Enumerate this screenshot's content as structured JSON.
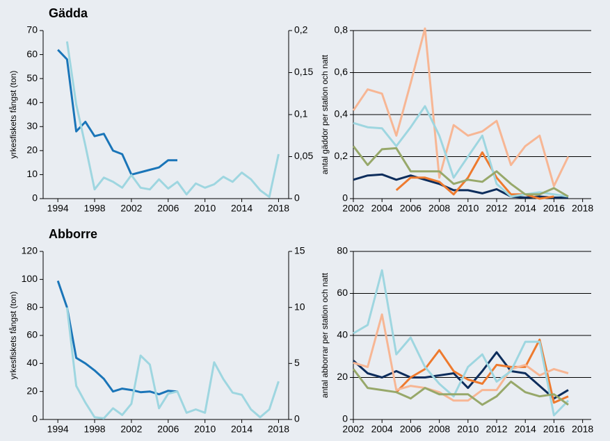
{
  "chart_data": [
    {
      "type": "line",
      "title": "Gädda",
      "ylabel": "yrkesfiskets fångst (ton)",
      "x": [
        1994,
        1995,
        1996,
        1997,
        1998,
        1999,
        2000,
        2001,
        2002,
        2003,
        2004,
        2005,
        2006,
        2007,
        2008,
        2009,
        2010,
        2011,
        2012,
        2013,
        2014,
        2015,
        2016,
        2017,
        2018
      ],
      "series": [
        {
          "color": "#1a75b8",
          "values": [
            62,
            58,
            28,
            32,
            26,
            27,
            20,
            18.5,
            10,
            11,
            12,
            13,
            16,
            16,
            null,
            null,
            null,
            null,
            null,
            null,
            null,
            null,
            null,
            null,
            null
          ]
        },
        {
          "color": "#9ed6e0",
          "axis": "y2",
          "values": [
            null,
            0.187,
            0.112,
            0.063,
            0.011,
            0.025,
            0.02,
            0.013,
            0.028,
            0.013,
            0.011,
            0.023,
            0.012,
            0.02,
            0.005,
            0.018,
            0.013,
            0.017,
            0.026,
            0.02,
            0.031,
            0.023,
            0.01,
            0.002,
            0.053
          ]
        }
      ],
      "xlim": [
        1992.4,
        2019.1
      ],
      "xticks": [
        1994,
        1998,
        2002,
        2006,
        2010,
        2014,
        2018
      ],
      "ylim": [
        0,
        70
      ],
      "yticks": [
        0,
        10,
        20,
        30,
        40,
        50,
        60,
        70
      ],
      "y2lim": [
        0,
        0.2
      ],
      "y2ticks": [
        0,
        {
          "value": 0.05,
          "label": "0,05"
        },
        {
          "value": 0.1,
          "label": "0,1"
        },
        {
          "value": 0.15,
          "label": "0,15"
        },
        {
          "value": 0.2,
          "label": "0,2"
        }
      ],
      "grid": false
    },
    {
      "type": "line",
      "ylabel": "antal gäddor per station och natt",
      "x": [
        2002,
        2003,
        2004,
        2005,
        2006,
        2007,
        2008,
        2009,
        2010,
        2011,
        2012,
        2013,
        2014,
        2015,
        2016,
        2017
      ],
      "series": [
        {
          "color": "#0d2d5c",
          "values": [
            0.09,
            0.11,
            0.115,
            0.09,
            0.11,
            0.09,
            0.07,
            0.04,
            0.04,
            0.025,
            0.045,
            0.01,
            0.005,
            0.01,
            0.005,
            0.005
          ]
        },
        {
          "color": "#ee7a2e",
          "values": [
            null,
            null,
            null,
            0.04,
            0.1,
            0.1,
            0.08,
            0.02,
            0.1,
            0.22,
            0.1,
            0.02,
            0.02,
            0,
            0.01,
            null
          ]
        },
        {
          "color": "#f7b694",
          "values": [
            0.42,
            0.52,
            0.5,
            0.3,
            0.55,
            0.81,
            0.1,
            0.35,
            0.3,
            0.32,
            0.37,
            0.16,
            0.25,
            0.3,
            0.06,
            0.2
          ]
        },
        {
          "color": "#9ed6e0",
          "values": [
            0.36,
            0.34,
            0.335,
            0.25,
            0.34,
            0.44,
            0.3,
            0.1,
            0.2,
            0.3,
            0.07,
            0.01,
            0.02,
            0.03,
            0.02,
            0.01
          ]
        },
        {
          "color": "#97a86a",
          "values": [
            0.25,
            0.16,
            0.235,
            0.24,
            0.13,
            0.13,
            0.13,
            0.07,
            0.09,
            0.08,
            0.13,
            0.07,
            0.02,
            0.02,
            0.05,
            0.01
          ]
        }
      ],
      "xlim": [
        2002,
        2018.6
      ],
      "xticks": [
        2002,
        2004,
        2006,
        2008,
        2010,
        2012,
        2014,
        2016,
        2018
      ],
      "ylim": [
        0,
        0.8
      ],
      "yticks": [
        0,
        {
          "value": 0.2,
          "label": "0,2"
        },
        {
          "value": 0.4,
          "label": "0,4"
        },
        {
          "value": 0.6,
          "label": "0,6"
        },
        {
          "value": 0.8,
          "label": "0,8"
        }
      ],
      "grid": true
    },
    {
      "type": "line",
      "title": "Abborre",
      "ylabel": "yrkesfiskets fångst (ton)",
      "x": [
        1994,
        1995,
        1996,
        1997,
        1998,
        1999,
        2000,
        2001,
        2002,
        2003,
        2004,
        2005,
        2006,
        2007,
        2008,
        2009,
        2010,
        2011,
        2012,
        2013,
        2014,
        2015,
        2016,
        2017,
        2018
      ],
      "series": [
        {
          "color": "#1a75b8",
          "values": [
            99,
            80,
            44,
            40,
            35,
            29,
            20,
            22,
            21,
            19.5,
            20,
            18,
            20.5,
            20,
            null,
            null,
            null,
            null,
            null,
            null,
            null,
            null,
            null,
            null,
            null
          ]
        },
        {
          "color": "#9ed6e0",
          "axis": "y2",
          "values": [
            null,
            10,
            3,
            1.5,
            0.2,
            0.1,
            1,
            0.4,
            1.4,
            5.7,
            4.9,
            1,
            2.3,
            2.5,
            0.6,
            0.9,
            0.6,
            5.1,
            3.6,
            2.4,
            2.2,
            0.9,
            0.2,
            0.9,
            3.4
          ]
        }
      ],
      "xlim": [
        1992.4,
        2019.1
      ],
      "xticks": [
        1994,
        1998,
        2002,
        2006,
        2010,
        2014,
        2018
      ],
      "ylim": [
        0,
        120
      ],
      "yticks": [
        0,
        20,
        40,
        60,
        80,
        100,
        120
      ],
      "y2lim": [
        0,
        15
      ],
      "y2ticks": [
        0,
        5,
        10,
        15
      ],
      "grid": false
    },
    {
      "type": "line",
      "ylabel": "antal abborrar per station och natt",
      "x": [
        2002,
        2003,
        2004,
        2005,
        2006,
        2007,
        2008,
        2009,
        2010,
        2011,
        2012,
        2013,
        2014,
        2015,
        2016,
        2017
      ],
      "series": [
        {
          "color": "#0d2d5c",
          "values": [
            28,
            22,
            20,
            23,
            20,
            20,
            21,
            22,
            15,
            23,
            32,
            23,
            22,
            16,
            10,
            14
          ]
        },
        {
          "color": "#ee7a2e",
          "values": [
            null,
            null,
            null,
            13,
            20,
            24,
            33,
            23,
            19,
            17,
            26,
            25,
            25,
            38,
            8,
            11
          ]
        },
        {
          "color": "#f7b694",
          "values": [
            27,
            25,
            50,
            14,
            16,
            15,
            13,
            9,
            9,
            14,
            14,
            24,
            26,
            21,
            24,
            22
          ]
        },
        {
          "color": "#9ed6e0",
          "values": [
            41,
            45,
            71,
            31,
            39,
            25,
            17,
            11,
            25,
            31,
            18,
            23,
            37,
            37,
            2,
            9
          ]
        },
        {
          "color": "#97a86a",
          "values": [
            24,
            15,
            14,
            13,
            10,
            15,
            12,
            12,
            12,
            7,
            11,
            18,
            13,
            11,
            12,
            7
          ]
        }
      ],
      "xlim": [
        2002,
        2018.6
      ],
      "xticks": [
        2002,
        2004,
        2006,
        2008,
        2010,
        2012,
        2014,
        2016,
        2018
      ],
      "ylim": [
        0,
        80
      ],
      "yticks": [
        0,
        20,
        40,
        60,
        80
      ],
      "grid": true
    }
  ]
}
